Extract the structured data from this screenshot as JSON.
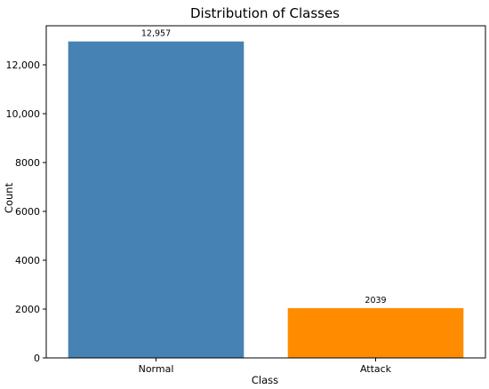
{
  "chart_data": {
    "type": "bar",
    "title": "Distribution of Classes",
    "xlabel": "Class",
    "ylabel": "Count",
    "categories": [
      "Normal",
      "Attack"
    ],
    "values": [
      12957,
      2039
    ],
    "value_labels": [
      "12,957",
      "2039"
    ],
    "colors": [
      "#4682b4",
      "#ff8c00"
    ],
    "ylim": [
      0,
      13600
    ],
    "yticks": [
      0,
      2000,
      4000,
      6000,
      8000,
      10000,
      12000
    ],
    "ytick_labels": [
      "0",
      "2000",
      "4000",
      "6000",
      "8000",
      "10,000",
      "12,000"
    ],
    "grid": false,
    "legend": false
  }
}
